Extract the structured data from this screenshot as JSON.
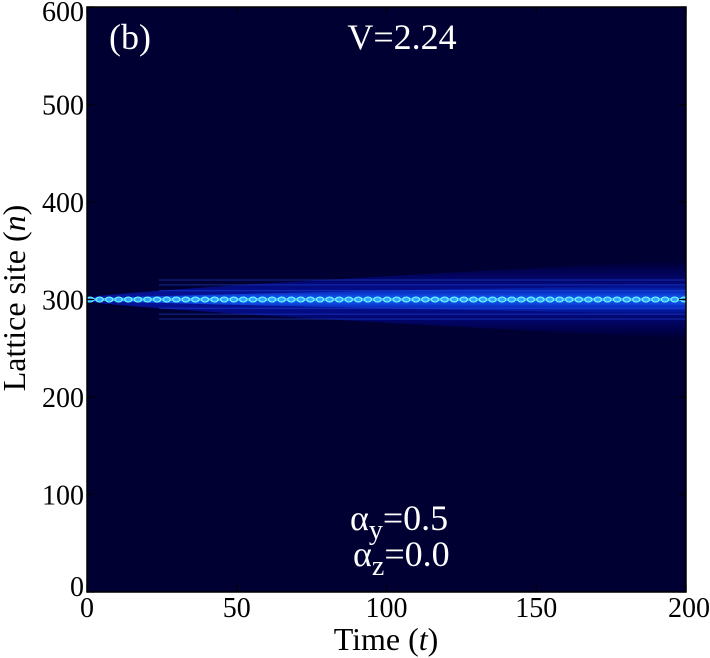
{
  "chart_data": {
    "type": "heatmap",
    "panel_label": "(b)",
    "title": "V=2.24",
    "xlabel": {
      "main": "Time (",
      "var": "t",
      "close": ")"
    },
    "ylabel": {
      "main": "Lattice site (",
      "var": "n",
      "close": ")"
    },
    "xlim": [
      0,
      200
    ],
    "ylim": [
      0,
      600
    ],
    "xticks": [
      0,
      50,
      100,
      150,
      200
    ],
    "yticks": [
      0,
      100,
      200,
      300,
      400,
      500,
      600
    ],
    "annotations": [
      {
        "symbol": "α",
        "sub": "y",
        "text": "=0.5"
      },
      {
        "symbol": "α",
        "sub": "z",
        "text": "=0.0"
      }
    ],
    "center_site": 300,
    "spread_start": 2,
    "spread_end": 40,
    "side_bands": [
      280,
      285,
      291,
      309,
      315,
      320
    ],
    "colormap": "jet",
    "background_color": "#000033",
    "peak_color": "#66ffff",
    "grid": false
  }
}
